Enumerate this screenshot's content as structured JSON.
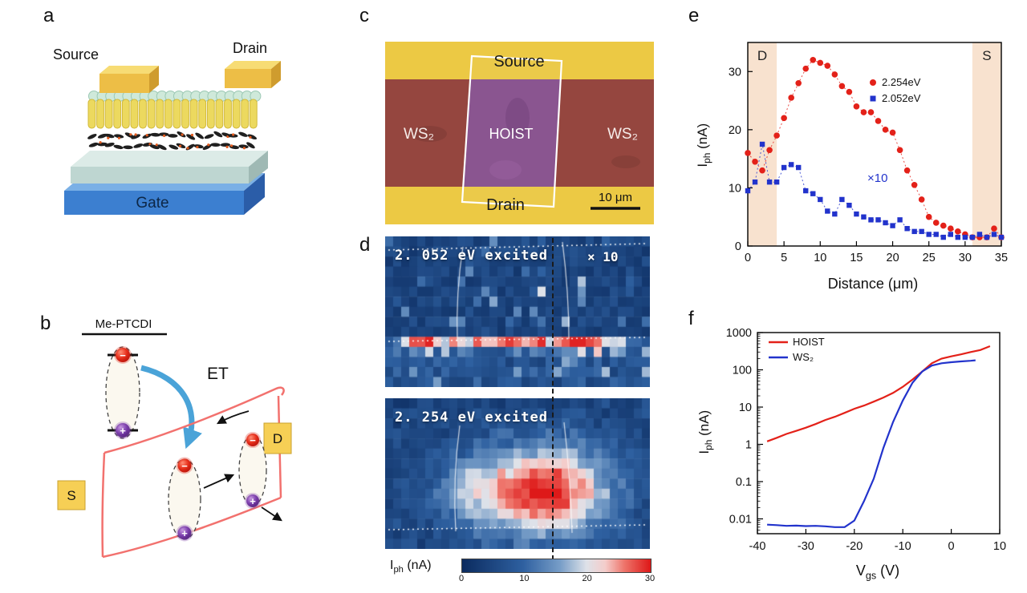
{
  "panels": {
    "a": {
      "label": "a",
      "source": "Source",
      "drain": "Drain",
      "gate": "Gate"
    },
    "b": {
      "label": "b",
      "molecule": "Me-PTCDI",
      "et": "ET",
      "s": "S",
      "d": "D",
      "electron_sign": "−",
      "hole_sign": "+"
    },
    "c": {
      "label": "c",
      "source": "Source",
      "drain": "Drain",
      "ws2_left": "WS₂",
      "hoist": "HOIST",
      "ws2_right": "WS₂",
      "scale_bar": "10 μm"
    },
    "d": {
      "label": "d",
      "colorbar_label_main": "I",
      "colorbar_label_sub": "ph",
      "colorbar_label_unit": " (nA)"
    },
    "e": {
      "label": "e",
      "xlabel": "Distance (μm)",
      "ylabel_main": "I",
      "ylabel_sub": "ph",
      "ylabel_unit": " (nA)"
    },
    "f": {
      "label": "f",
      "xlabel_main": "V",
      "xlabel_sub": "gs",
      "xlabel_unit": " (V)",
      "ylabel_main": "I",
      "ylabel_sub": "ph",
      "ylabel_unit": " (nA)"
    }
  },
  "chart_data": [
    {
      "id": "panel-e-photocurrent-profile",
      "type": "scatter",
      "xlabel": "Distance (μm)",
      "ylabel": "Iph (nA)",
      "xlim": [
        0,
        35
      ],
      "ylim": [
        0,
        35
      ],
      "xticks": [
        0,
        5,
        10,
        15,
        20,
        25,
        30,
        35
      ],
      "yticks": [
        0,
        10,
        20,
        30
      ],
      "shade_color": "#f8e2cf",
      "shaded_regions": [
        {
          "label": "D",
          "x0": 0,
          "x1": 4
        },
        {
          "label": "S",
          "x0": 31,
          "x1": 35
        }
      ],
      "annotation": {
        "text": "×10",
        "x": 16.5,
        "y": 11,
        "color": "#2233cc"
      },
      "legend_position": "top-right",
      "series": [
        {
          "name": "2.254eV",
          "color": "#e32119",
          "marker": "circle",
          "x": [
            0,
            1,
            2,
            3,
            4,
            5,
            6,
            7,
            8,
            9,
            10,
            11,
            12,
            13,
            14,
            15,
            16,
            17,
            18,
            19,
            20,
            21,
            22,
            23,
            24,
            25,
            26,
            27,
            28,
            29,
            30,
            31,
            32,
            33,
            34,
            35
          ],
          "y": [
            16,
            14.5,
            13,
            16.5,
            19,
            22,
            25.5,
            28,
            30.5,
            32,
            31.5,
            31,
            29.5,
            27.5,
            26.5,
            24,
            23,
            23,
            21.5,
            20,
            19.5,
            16.5,
            13,
            10.5,
            8,
            5,
            4,
            3.5,
            3,
            2.5,
            2,
            1.5,
            1.5,
            1.5,
            3,
            1.5
          ]
        },
        {
          "name": "2.052eV",
          "color": "#2233cc",
          "marker": "square",
          "x": [
            0,
            1,
            2,
            3,
            4,
            5,
            6,
            7,
            8,
            9,
            10,
            11,
            12,
            13,
            14,
            15,
            16,
            17,
            18,
            19,
            20,
            21,
            22,
            23,
            24,
            25,
            26,
            27,
            28,
            29,
            30,
            31,
            32,
            33,
            34,
            35
          ],
          "y": [
            9.5,
            11,
            17.5,
            11,
            11,
            13.5,
            14,
            13.5,
            9.5,
            9,
            8,
            6,
            5.5,
            8,
            7,
            5.5,
            5,
            4.5,
            4.5,
            4,
            3.5,
            4.5,
            3,
            2.5,
            2.5,
            2,
            2,
            1.5,
            2,
            1.5,
            1.5,
            1.5,
            2,
            1.5,
            2,
            1.5
          ]
        }
      ]
    },
    {
      "id": "panel-f-transfer-curves",
      "type": "line",
      "xlabel": "Vgs (V)",
      "ylabel": "Iph (nA)",
      "xlim": [
        -40,
        10
      ],
      "xticks": [
        -40,
        -30,
        -20,
        -10,
        0,
        10
      ],
      "yscale": "log",
      "ylim": [
        0.004,
        1000
      ],
      "yticks": [
        0.01,
        0.1,
        1,
        10,
        100,
        1000
      ],
      "legend_position": "top-left",
      "series": [
        {
          "name": "HOIST",
          "color": "#e32119",
          "x": [
            -38,
            -36,
            -34,
            -32,
            -30,
            -28,
            -26,
            -24,
            -22,
            -20,
            -18,
            -16,
            -14,
            -12,
            -10,
            -8,
            -6,
            -4,
            -2,
            0,
            2,
            4,
            6,
            8
          ],
          "y": [
            1.2,
            1.5,
            1.9,
            2.3,
            2.8,
            3.5,
            4.5,
            5.5,
            7,
            9,
            11,
            14,
            18,
            24,
            35,
            55,
            90,
            150,
            200,
            230,
            260,
            300,
            340,
            430
          ]
        },
        {
          "name": "WS₂",
          "color": "#2233cc",
          "x": [
            -38,
            -36,
            -34,
            -32,
            -30,
            -28,
            -26,
            -24,
            -22,
            -20,
            -18,
            -16,
            -14,
            -12,
            -10,
            -8,
            -6,
            -4,
            -2,
            0,
            2,
            4,
            5
          ],
          "y": [
            0.007,
            0.0068,
            0.0065,
            0.0066,
            0.0064,
            0.0065,
            0.0063,
            0.006,
            0.006,
            0.009,
            0.03,
            0.12,
            0.8,
            4,
            15,
            45,
            90,
            130,
            150,
            160,
            168,
            175,
            180
          ]
        }
      ]
    },
    {
      "id": "panel-d-photocurrent-maps",
      "type": "heatmap",
      "maps": [
        {
          "title": "2. 052 eV excited",
          "scale_note": "× 10",
          "pattern": "blue background with bright red stripe along lower interface"
        },
        {
          "title": "2. 254 eV excited",
          "pattern": "blue background with broad red hotspot in lower-center of channel"
        }
      ],
      "colorbar": {
        "label": "Iph (nA)",
        "min": 0,
        "max": 30,
        "ticks": [
          0,
          10,
          20,
          30
        ]
      }
    }
  ]
}
